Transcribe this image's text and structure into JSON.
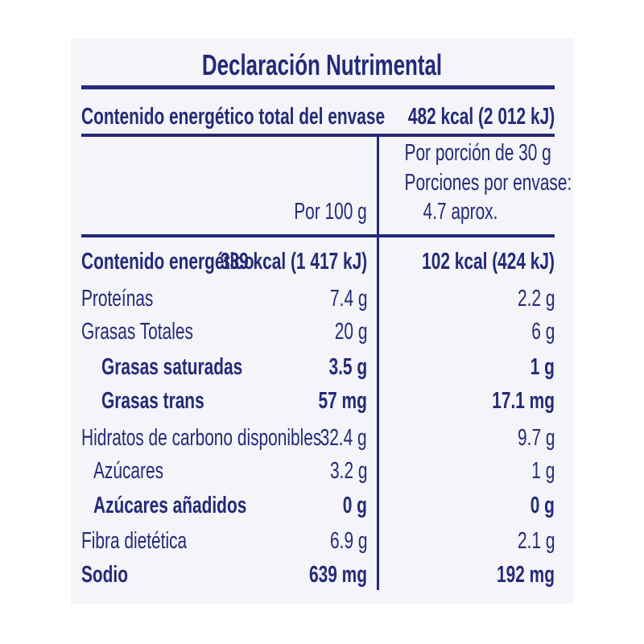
{
  "title": "Declaración Nutrimental",
  "total": {
    "label": "Contenido energético total del envase",
    "value": "482 kcal (2 012 kJ)"
  },
  "header": {
    "per100": "Por 100 g",
    "per_portion": "Por porción de 30 g",
    "portions_label": "Porciones por envase:",
    "portions_value": "4.7 aprox."
  },
  "rows": [
    {
      "label": "Contenido energético",
      "per100": "339 kcal (1 417 kJ)",
      "portion": "102 kcal (424 kJ)"
    },
    {
      "label": "Proteínas",
      "per100": "7.4 g",
      "portion": "2.2 g"
    },
    {
      "label": "Grasas Totales",
      "per100": "20 g",
      "portion": "6 g"
    },
    {
      "label": "Grasas saturadas",
      "per100": "3.5 g",
      "portion": "1 g"
    },
    {
      "label": "Grasas trans",
      "per100": "57 mg",
      "portion": "17.1 mg"
    },
    {
      "label": "Hidratos de carbono disponibles",
      "per100": "32.4 g",
      "portion": "9.7 g"
    },
    {
      "label": "Azúcares",
      "per100": "3.2 g",
      "portion": "1 g"
    },
    {
      "label": "Azúcares añadidos",
      "per100": "0 g",
      "portion": "0 g"
    },
    {
      "label": "Fibra dietética",
      "per100": "6.9 g",
      "portion": "2.1 g"
    },
    {
      "label": "Sodio",
      "per100": "639 mg",
      "portion": "192 mg"
    }
  ],
  "colors": {
    "text": "#242a78",
    "panel": "#f4f4f9"
  }
}
